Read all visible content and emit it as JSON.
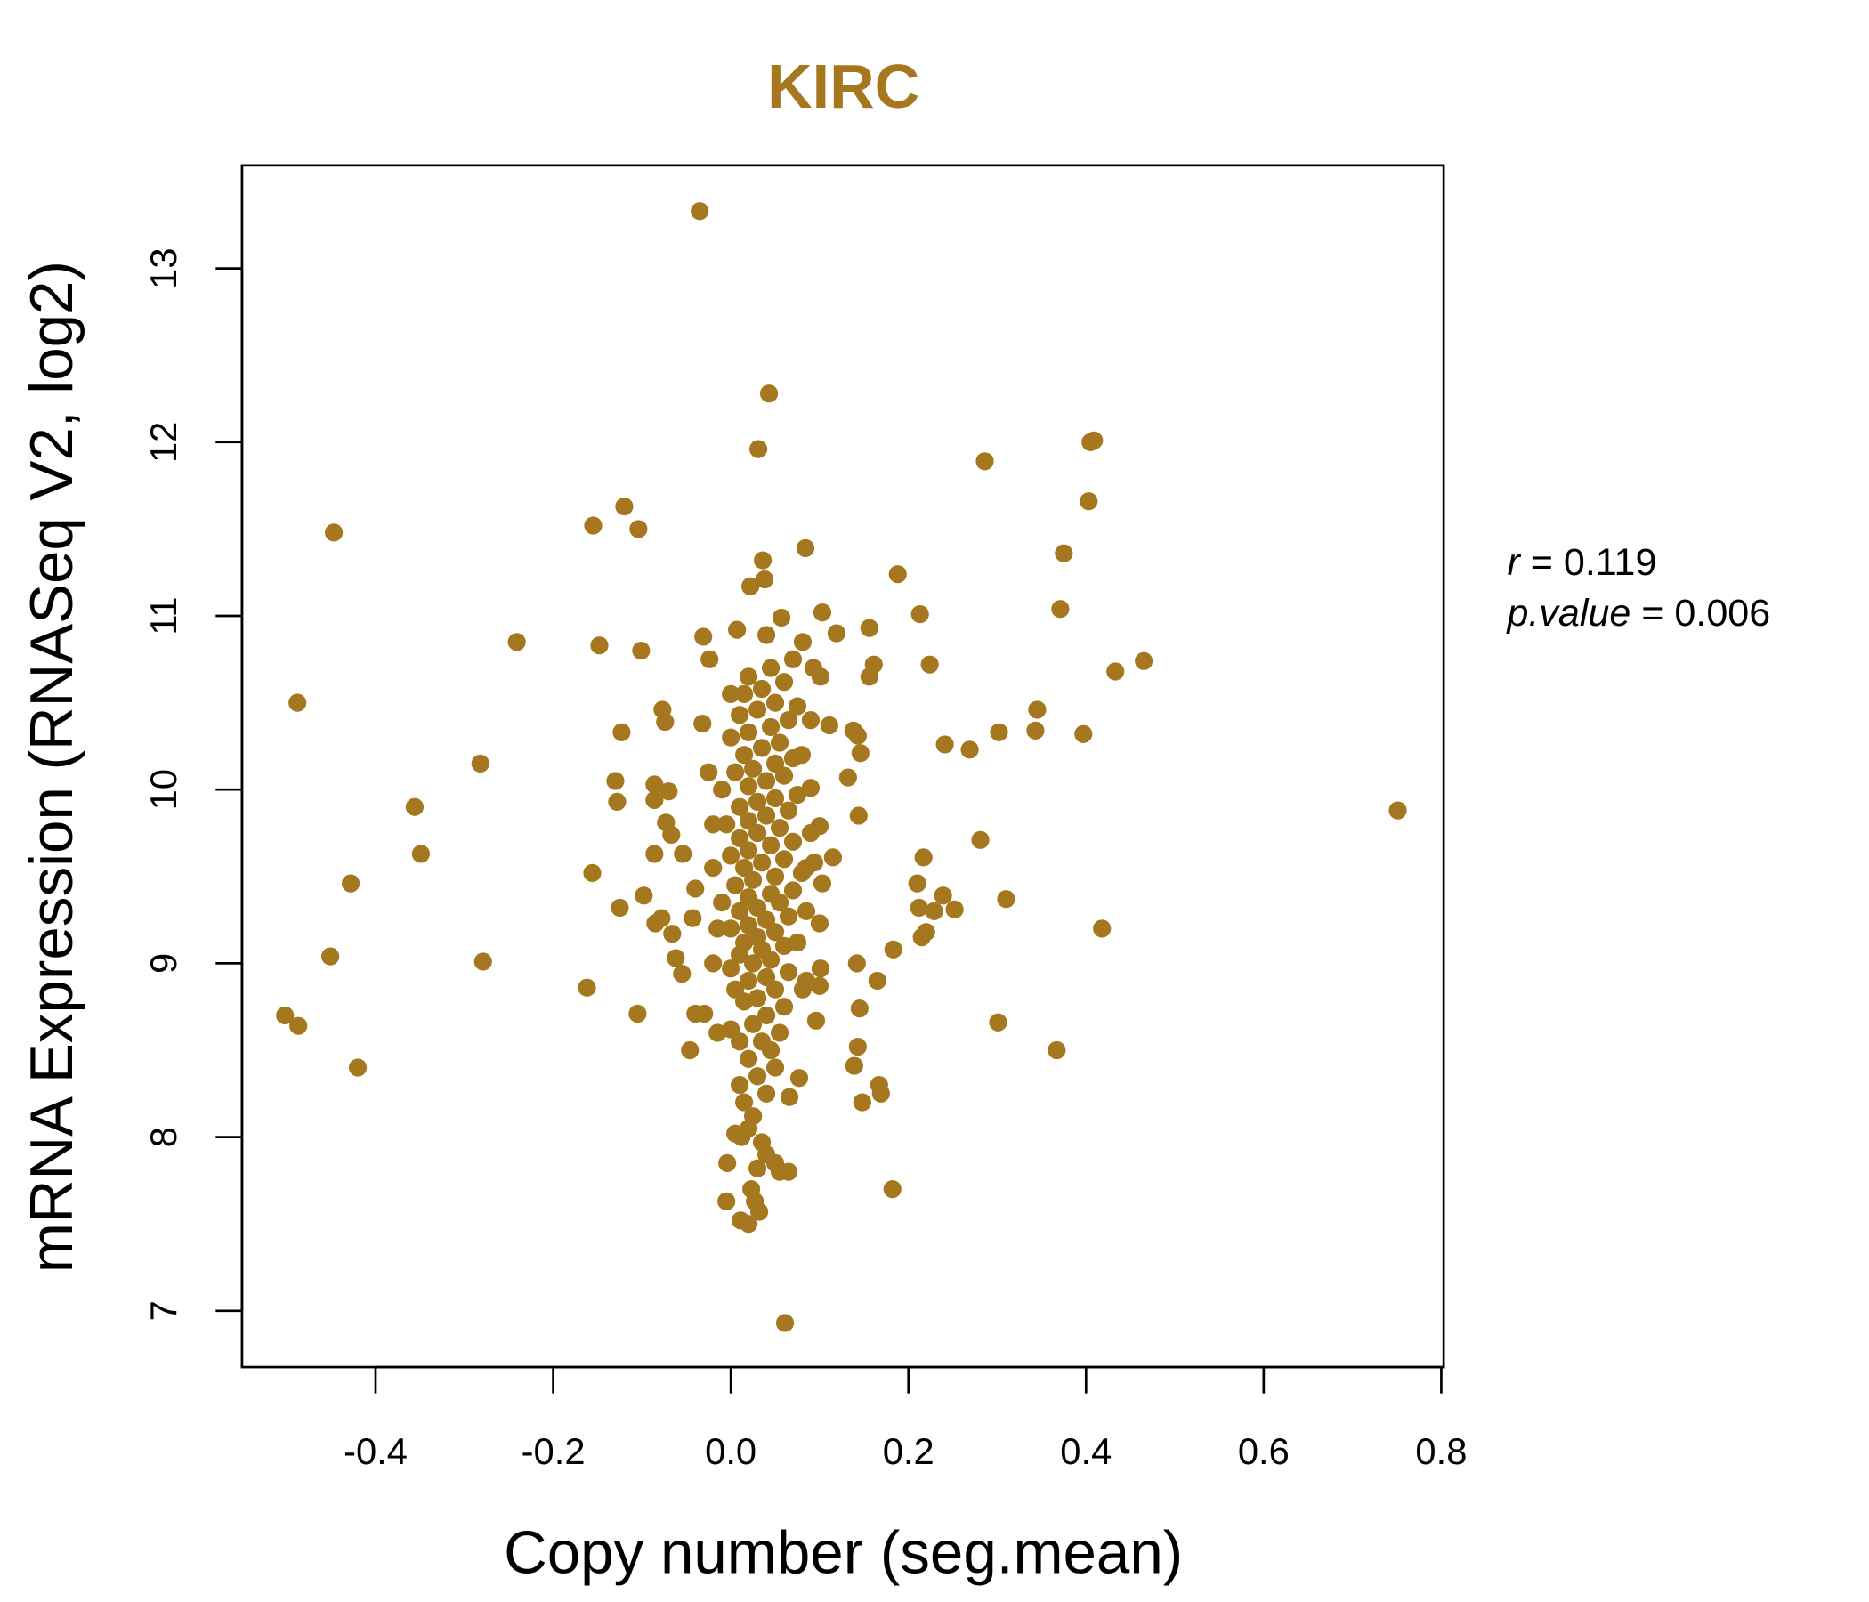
{
  "chart_data": {
    "type": "scatter",
    "title": "KIRC",
    "xlabel": "Copy number (seg.mean)",
    "ylabel": "mRNA Expression (RNASeq V2, log2)",
    "xlim": [
      -0.55,
      0.8
    ],
    "ylim": [
      6.78,
      13.6
    ],
    "xticks": [
      -0.4,
      -0.2,
      0.0,
      0.2,
      0.4,
      0.6,
      0.8
    ],
    "xtick_labels": [
      "-0.4",
      "-0.2",
      "0.0",
      "0.2",
      "0.4",
      "0.6",
      "0.8"
    ],
    "yticks": [
      7,
      8,
      9,
      10,
      11,
      12,
      13
    ],
    "ytick_labels": [
      "7",
      "8",
      "9",
      "10",
      "11",
      "12",
      "13"
    ],
    "grid": false,
    "color": "#A5771F",
    "annotation": {
      "r_label": "r",
      "r_value": "0.119",
      "p_label": "p.value",
      "p_value": "0.006"
    },
    "points": [
      [
        -0.035,
        13.33
      ],
      [
        0.043,
        12.28
      ],
      [
        0.031,
        11.96
      ],
      [
        0.409,
        12.01
      ],
      [
        0.405,
        12.0
      ],
      [
        0.286,
        11.89
      ],
      [
        0.403,
        11.66
      ],
      [
        -0.447,
        11.48
      ],
      [
        -0.12,
        11.63
      ],
      [
        -0.155,
        11.52
      ],
      [
        -0.104,
        11.5
      ],
      [
        0.084,
        11.39
      ],
      [
        0.036,
        11.32
      ],
      [
        0.375,
        11.36
      ],
      [
        0.188,
        11.24
      ],
      [
        0.038,
        11.21
      ],
      [
        0.022,
        11.17
      ],
      [
        0.371,
        11.04
      ],
      [
        0.213,
        11.01
      ],
      [
        0.103,
        11.02
      ],
      [
        0.057,
        10.99
      ],
      [
        0.156,
        10.93
      ],
      [
        0.119,
        10.9
      ],
      [
        0.007,
        10.92
      ],
      [
        -0.031,
        10.88
      ],
      [
        0.04,
        10.89
      ],
      [
        -0.241,
        10.85
      ],
      [
        -0.148,
        10.83
      ],
      [
        -0.101,
        10.8
      ],
      [
        0.081,
        10.85
      ],
      [
        -0.024,
        10.75
      ],
      [
        0.465,
        10.74
      ],
      [
        0.224,
        10.72
      ],
      [
        0.433,
        10.68
      ],
      [
        0.161,
        10.72
      ],
      [
        0.156,
        10.65
      ],
      [
        0.101,
        10.65
      ],
      [
        0.093,
        10.7
      ],
      [
        -0.488,
        10.5
      ],
      [
        -0.077,
        10.46
      ],
      [
        0.345,
        10.46
      ],
      [
        -0.074,
        10.39
      ],
      [
        -0.032,
        10.38
      ],
      [
        0.111,
        10.37
      ],
      [
        -0.123,
        10.33
      ],
      [
        0.302,
        10.33
      ],
      [
        0.343,
        10.34
      ],
      [
        0.397,
        10.32
      ],
      [
        0.138,
        10.34
      ],
      [
        0.143,
        10.31
      ],
      [
        0.241,
        10.26
      ],
      [
        0.269,
        10.23
      ],
      [
        0.146,
        10.21
      ],
      [
        -0.282,
        10.15
      ],
      [
        -0.13,
        10.05
      ],
      [
        0.132,
        10.07
      ],
      [
        -0.086,
        10.03
      ],
      [
        -0.07,
        9.99
      ],
      [
        0.09,
        10.01
      ],
      [
        -0.128,
        9.93
      ],
      [
        -0.086,
        9.94
      ],
      [
        -0.356,
        9.9
      ],
      [
        0.751,
        9.88
      ],
      [
        0.144,
        9.85
      ],
      [
        -0.073,
        9.81
      ],
      [
        -0.067,
        9.74
      ],
      [
        0.1,
        9.79
      ],
      [
        0.281,
        9.71
      ],
      [
        -0.349,
        9.63
      ],
      [
        -0.086,
        9.63
      ],
      [
        -0.054,
        9.63
      ],
      [
        0.217,
        9.61
      ],
      [
        0.115,
        9.61
      ],
      [
        0.094,
        9.58
      ],
      [
        -0.156,
        9.52
      ],
      [
        -0.428,
        9.46
      ],
      [
        0.21,
        9.46
      ],
      [
        -0.04,
        9.43
      ],
      [
        0.103,
        9.46
      ],
      [
        -0.098,
        9.39
      ],
      [
        0.239,
        9.39
      ],
      [
        0.31,
        9.37
      ],
      [
        -0.125,
        9.32
      ],
      [
        0.212,
        9.32
      ],
      [
        0.229,
        9.3
      ],
      [
        0.252,
        9.31
      ],
      [
        -0.078,
        9.26
      ],
      [
        -0.085,
        9.23
      ],
      [
        -0.043,
        9.26
      ],
      [
        0.1,
        9.23
      ],
      [
        0.418,
        9.2
      ],
      [
        0.22,
        9.18
      ],
      [
        0.215,
        9.15
      ],
      [
        -0.066,
        9.17
      ],
      [
        0.183,
        9.08
      ],
      [
        -0.451,
        9.04
      ],
      [
        -0.279,
        9.01
      ],
      [
        -0.062,
        9.03
      ],
      [
        0.142,
        9.0
      ],
      [
        0.101,
        8.97
      ],
      [
        -0.055,
        8.94
      ],
      [
        -0.162,
        8.86
      ],
      [
        0.165,
        8.9
      ],
      [
        0.081,
        8.85
      ],
      [
        0.1,
        8.87
      ],
      [
        0.145,
        8.74
      ],
      [
        -0.502,
        8.7
      ],
      [
        -0.105,
        8.71
      ],
      [
        -0.04,
        8.71
      ],
      [
        -0.03,
        8.71
      ],
      [
        -0.487,
        8.64
      ],
      [
        0.301,
        8.66
      ],
      [
        0.096,
        8.67
      ],
      [
        0.143,
        8.52
      ],
      [
        -0.046,
        8.5
      ],
      [
        0.367,
        8.5
      ],
      [
        0.139,
        8.41
      ],
      [
        -0.42,
        8.4
      ],
      [
        0.077,
        8.34
      ],
      [
        0.167,
        8.3
      ],
      [
        0.169,
        8.25
      ],
      [
        0.066,
        8.23
      ],
      [
        0.148,
        8.2
      ],
      [
        0.182,
        7.7
      ],
      [
        0.061,
        6.93
      ],
      [
        -0.004,
        7.85
      ],
      [
        0.065,
        7.8
      ],
      [
        0.055,
        7.8
      ],
      [
        0.023,
        7.7
      ],
      [
        -0.005,
        7.63
      ],
      [
        0.011,
        7.52
      ],
      [
        0.02,
        7.5
      ],
      [
        0.032,
        7.57
      ],
      [
        0.027,
        7.63
      ],
      [
        0.012,
        8.0
      ],
      [
        0.035,
        7.97
      ],
      [
        0.04,
        7.9
      ],
      [
        0.03,
        7.82
      ],
      [
        0.05,
        7.85
      ],
      [
        0.005,
        8.02
      ],
      [
        0.02,
        8.05
      ],
      [
        0.025,
        8.12
      ],
      [
        0.015,
        8.2
      ],
      [
        0.04,
        8.25
      ],
      [
        0.01,
        8.3
      ],
      [
        0.03,
        8.35
      ],
      [
        0.05,
        8.4
      ],
      [
        0.02,
        8.45
      ],
      [
        0.045,
        8.5
      ],
      [
        0.01,
        8.55
      ],
      [
        0.035,
        8.55
      ],
      [
        0.055,
        8.6
      ],
      [
        0.0,
        8.62
      ],
      [
        0.025,
        8.65
      ],
      [
        0.04,
        8.7
      ],
      [
        0.06,
        8.75
      ],
      [
        0.015,
        8.78
      ],
      [
        0.03,
        8.8
      ],
      [
        0.05,
        8.85
      ],
      [
        0.005,
        8.85
      ],
      [
        0.02,
        8.9
      ],
      [
        0.04,
        8.92
      ],
      [
        0.065,
        8.95
      ],
      [
        0.0,
        8.97
      ],
      [
        0.025,
        9.0
      ],
      [
        0.045,
        9.02
      ],
      [
        0.01,
        9.05
      ],
      [
        0.035,
        9.08
      ],
      [
        0.06,
        9.1
      ],
      [
        0.075,
        9.12
      ],
      [
        0.015,
        9.12
      ],
      [
        0.03,
        9.15
      ],
      [
        0.05,
        9.18
      ],
      [
        0.0,
        9.2
      ],
      [
        0.02,
        9.22
      ],
      [
        0.04,
        9.25
      ],
      [
        0.065,
        9.27
      ],
      [
        0.01,
        9.3
      ],
      [
        0.03,
        9.32
      ],
      [
        0.055,
        9.35
      ],
      [
        -0.01,
        9.35
      ],
      [
        0.02,
        9.38
      ],
      [
        0.045,
        9.4
      ],
      [
        0.07,
        9.42
      ],
      [
        0.005,
        9.45
      ],
      [
        0.025,
        9.48
      ],
      [
        0.05,
        9.5
      ],
      [
        0.08,
        9.52
      ],
      [
        0.015,
        9.55
      ],
      [
        0.035,
        9.58
      ],
      [
        0.06,
        9.6
      ],
      [
        0.0,
        9.62
      ],
      [
        0.02,
        9.65
      ],
      [
        0.045,
        9.68
      ],
      [
        0.07,
        9.7
      ],
      [
        0.01,
        9.72
      ],
      [
        0.03,
        9.75
      ],
      [
        0.055,
        9.78
      ],
      [
        -0.005,
        9.8
      ],
      [
        0.02,
        9.82
      ],
      [
        0.04,
        9.85
      ],
      [
        0.065,
        9.88
      ],
      [
        0.01,
        9.9
      ],
      [
        0.03,
        9.93
      ],
      [
        0.05,
        9.95
      ],
      [
        0.075,
        9.97
      ],
      [
        -0.01,
        10.0
      ],
      [
        0.02,
        10.02
      ],
      [
        0.04,
        10.05
      ],
      [
        0.06,
        10.08
      ],
      [
        0.005,
        10.1
      ],
      [
        0.025,
        10.12
      ],
      [
        0.05,
        10.15
      ],
      [
        0.07,
        10.18
      ],
      [
        0.015,
        10.2
      ],
      [
        0.035,
        10.24
      ],
      [
        0.055,
        10.27
      ],
      [
        0.0,
        10.3
      ],
      [
        0.02,
        10.33
      ],
      [
        0.045,
        10.36
      ],
      [
        0.065,
        10.4
      ],
      [
        0.01,
        10.43
      ],
      [
        0.03,
        10.46
      ],
      [
        0.05,
        10.5
      ],
      [
        0.075,
        10.48
      ],
      [
        0.015,
        10.55
      ],
      [
        0.035,
        10.58
      ],
      [
        0.06,
        10.62
      ],
      [
        0.0,
        10.55
      ],
      [
        0.02,
        10.65
      ],
      [
        0.045,
        10.7
      ],
      [
        0.07,
        10.75
      ],
      [
        -0.02,
        9.55
      ],
      [
        -0.015,
        9.2
      ],
      [
        -0.02,
        9.8
      ],
      [
        -0.025,
        10.1
      ],
      [
        0.085,
        9.3
      ],
      [
        0.09,
        9.75
      ],
      [
        0.08,
        10.2
      ],
      [
        0.085,
        8.9
      ],
      [
        -0.015,
        8.6
      ],
      [
        0.09,
        10.4
      ],
      [
        -0.02,
        9.0
      ],
      [
        0.085,
        9.55
      ]
    ]
  }
}
